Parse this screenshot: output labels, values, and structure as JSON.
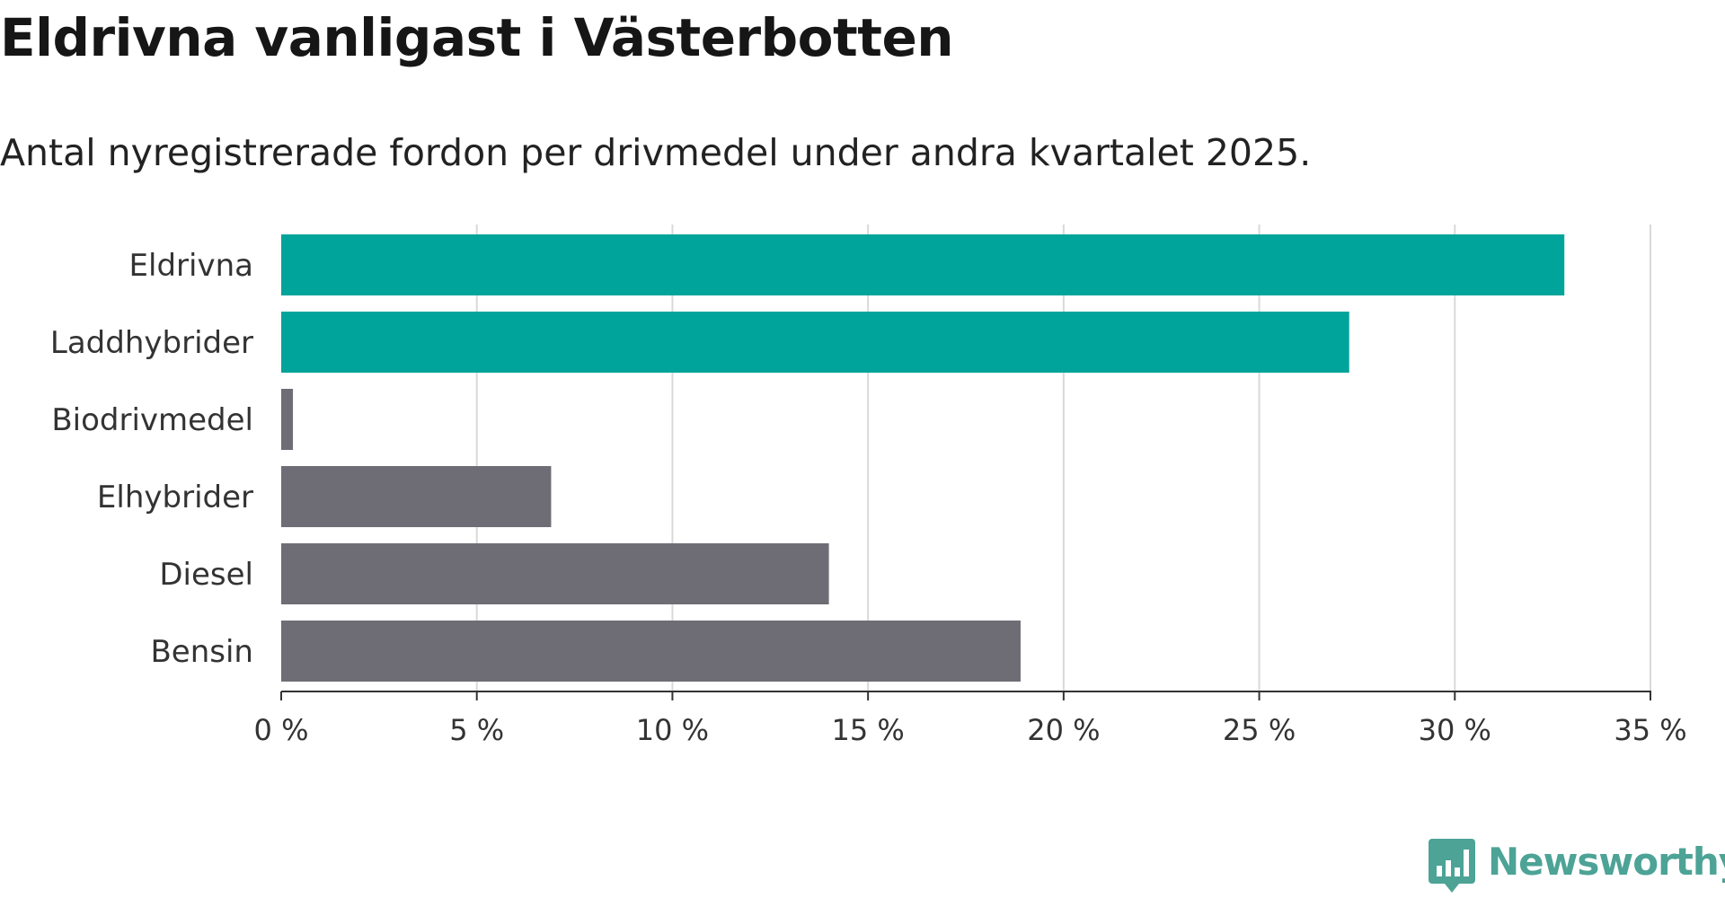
{
  "colors": {
    "highlight": "#00a49a",
    "default": "#6e6d75",
    "grid": "#d9d9d9",
    "axis": "#333333",
    "brand": "#4ca396"
  },
  "brand": {
    "name": "Newsworthy",
    "icon": "bar-chart-speech-bubble-icon"
  },
  "chart_data": {
    "type": "bar",
    "orientation": "horizontal",
    "title": "Eldrivna vanligast i Västerbotten",
    "subtitle": "Antal nyregistrerade fordon per drivmedel under andra kvartalet 2025.",
    "categories": [
      "Eldrivna",
      "Laddhybrider",
      "Biodrivmedel",
      "Elhybrider",
      "Diesel",
      "Bensin"
    ],
    "values": [
      32.8,
      27.3,
      0.3,
      6.9,
      14.0,
      18.9
    ],
    "highlighted": [
      true,
      true,
      false,
      false,
      false,
      false
    ],
    "xlim": [
      0,
      35
    ],
    "xticks": [
      0,
      5,
      10,
      15,
      20,
      25,
      30,
      35
    ],
    "tick_labels": [
      "0 %",
      "5 %",
      "10 %",
      "15 %",
      "20 %",
      "25 %",
      "30 %",
      "35 %"
    ],
    "unit": "%",
    "grid": true,
    "legend": "none"
  }
}
